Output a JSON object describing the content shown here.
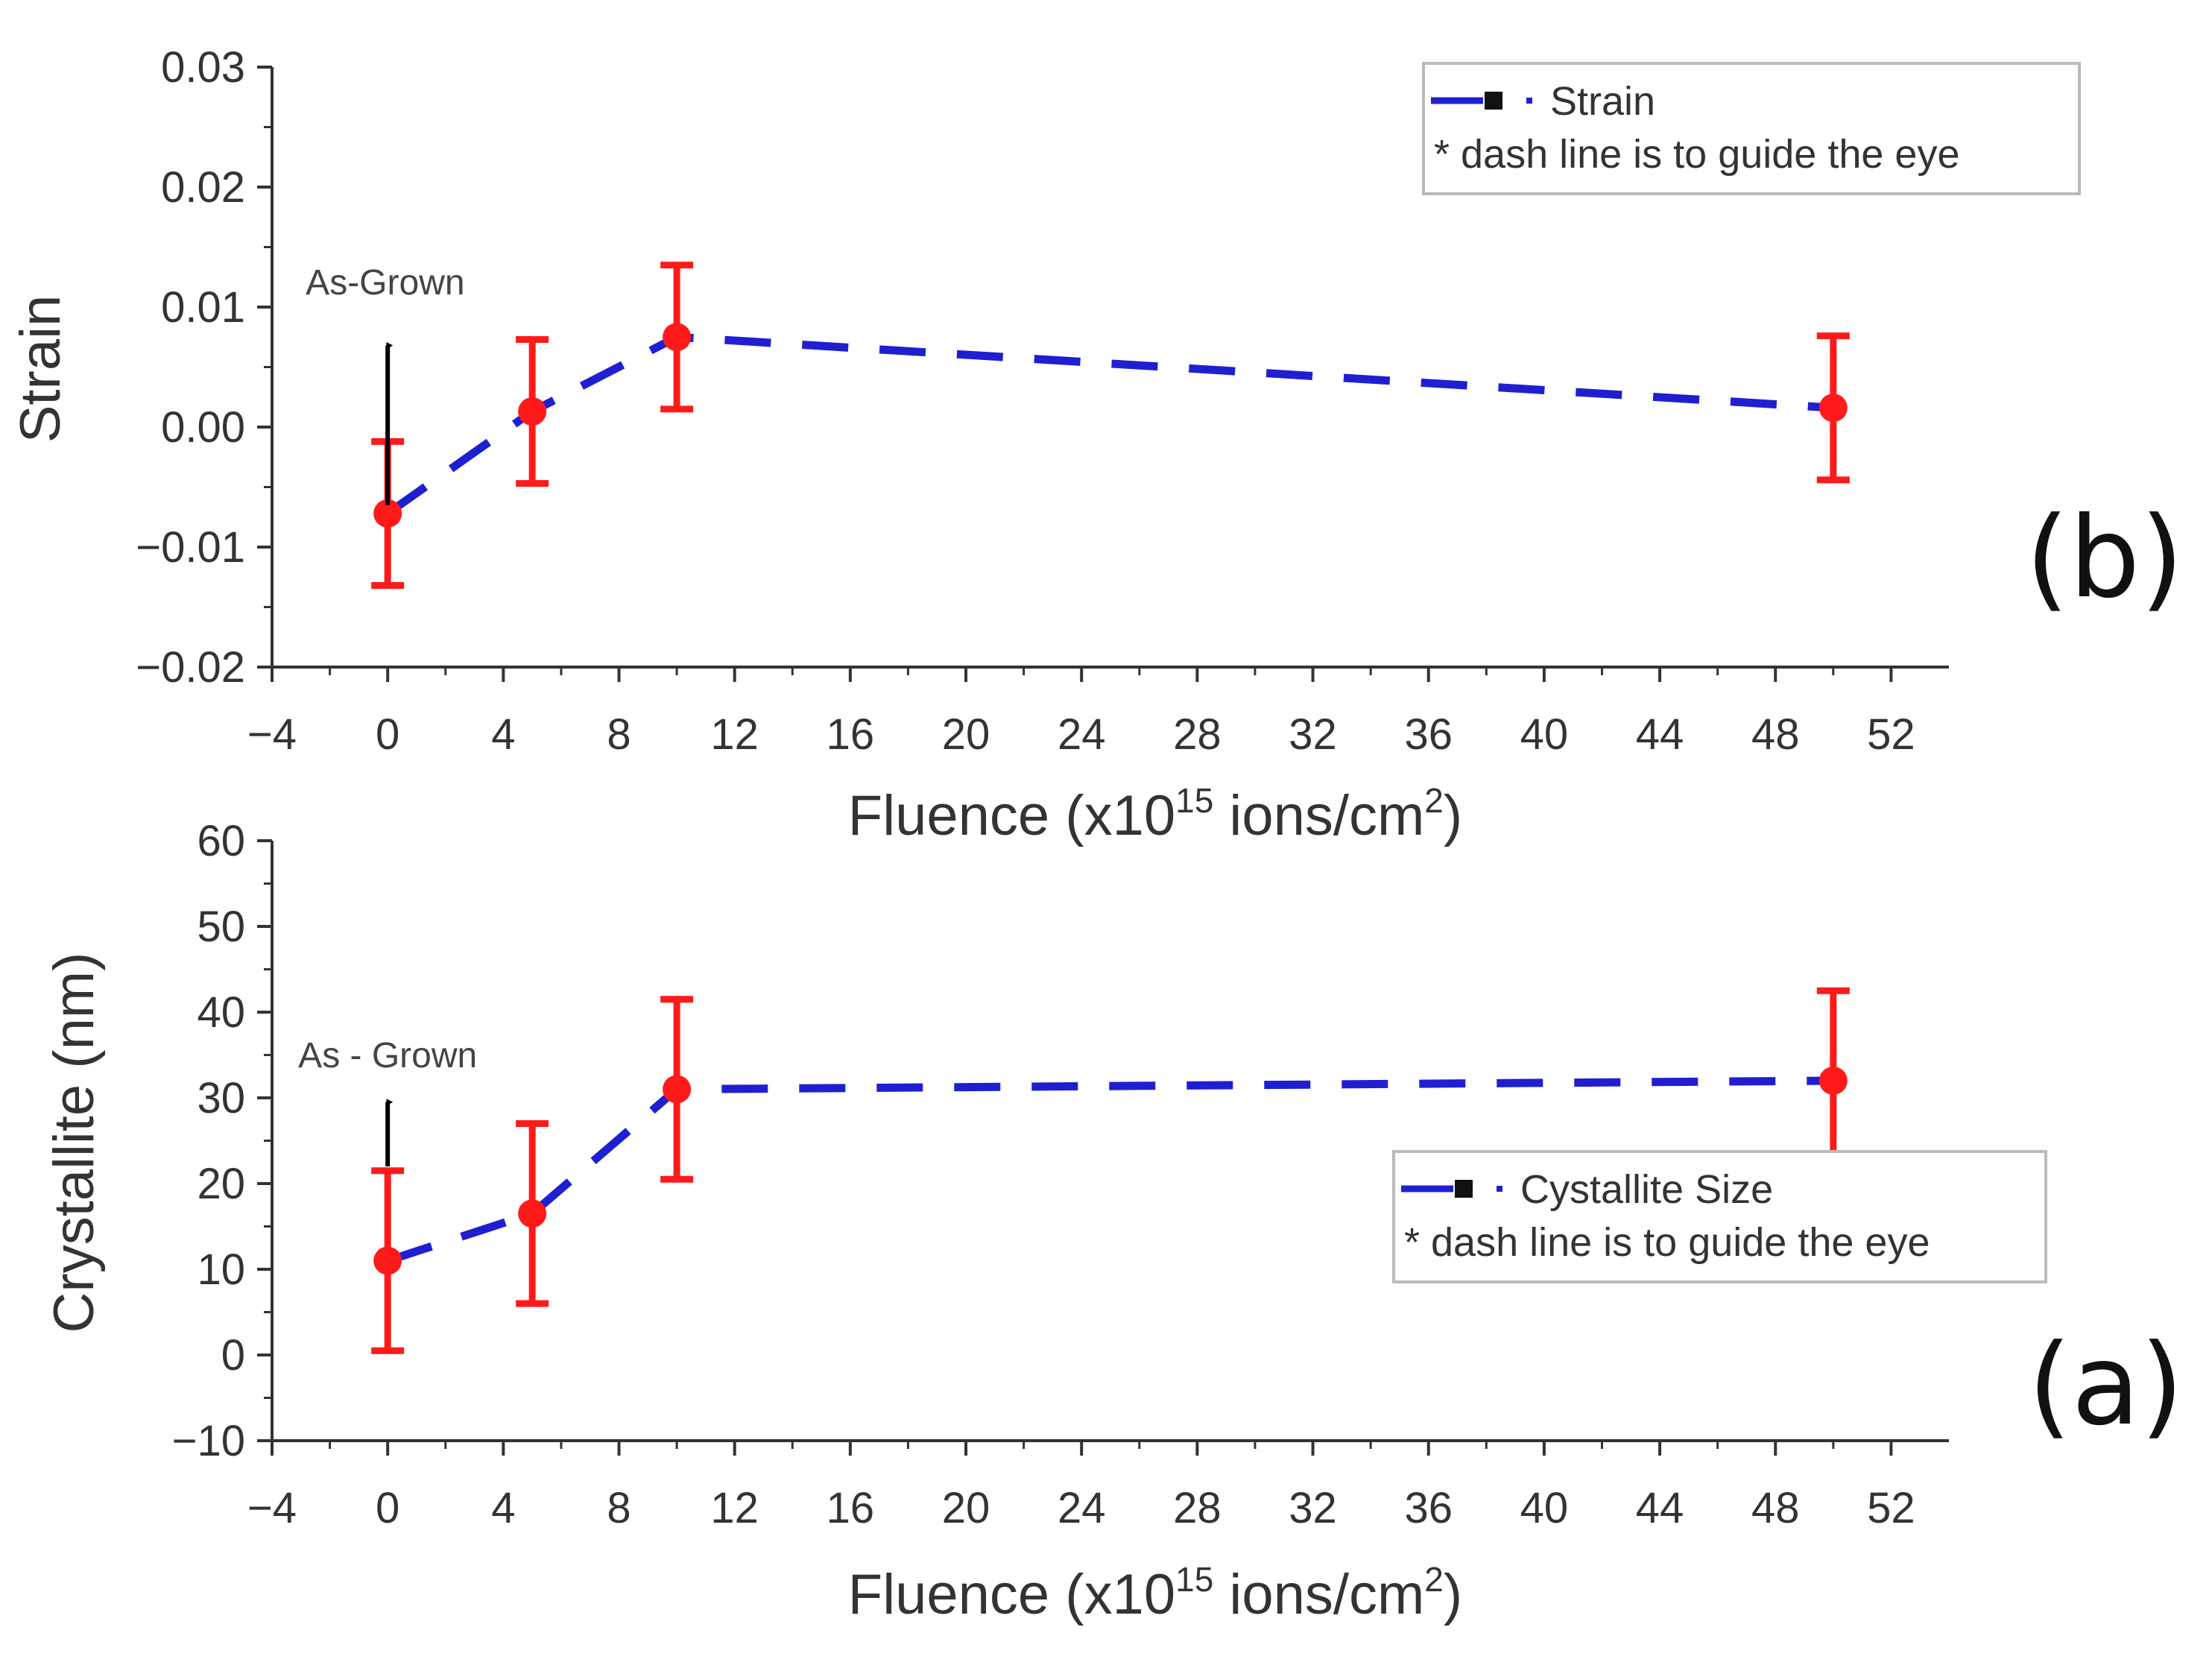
{
  "chart_data": [
    {
      "id": "b",
      "type": "line",
      "panel_label": "(b)",
      "title": "",
      "xlabel": "Fluence (x10",
      "xlabel_sup": "15",
      "xlabel_mid": " ions/cm",
      "xlabel_sup2": "2",
      "xlabel_end": ")",
      "ylabel": "Strain",
      "xlim": [
        -4,
        54
      ],
      "ylim": [
        -0.02,
        0.03
      ],
      "xticks": [
        -4,
        0,
        4,
        8,
        12,
        16,
        20,
        24,
        28,
        32,
        36,
        40,
        44,
        48,
        52
      ],
      "xtick_labels": [
        "−4",
        "0",
        "4",
        "8",
        "12",
        "16",
        "20",
        "24",
        "28",
        "32",
        "36",
        "40",
        "44",
        "48",
        "52"
      ],
      "yticks": [
        -0.02,
        -0.01,
        0.0,
        0.01,
        0.02,
        0.03
      ],
      "ytick_labels": [
        "−0.02",
        "−0.01",
        "0.00",
        "0.01",
        "0.02",
        "0.03"
      ],
      "series": [
        {
          "name": "Strain",
          "x": [
            0,
            5,
            10,
            50
          ],
          "y": [
            -0.0072,
            0.0013,
            0.0075,
            0.0016
          ],
          "yerr": [
            0.006,
            0.006,
            0.006,
            0.006
          ],
          "line_color": "#1f1fd1",
          "marker_color": "#ff1a1a"
        }
      ],
      "annotation": {
        "text": "As-Grown",
        "x": 0,
        "y_from": -0.0065,
        "y_to": 0.0068
      },
      "legend": {
        "entry": "Strain",
        "note": "* dash line is to guide the eye",
        "position": "top-right"
      }
    },
    {
      "id": "a",
      "type": "line",
      "panel_label": "(a)",
      "title": "",
      "xlabel": "Fluence (x10",
      "xlabel_sup": "15",
      "xlabel_mid": " ions/cm",
      "xlabel_sup2": "2",
      "xlabel_end": ")",
      "ylabel": "Crystallite (nm)",
      "xlim": [
        -4,
        54
      ],
      "ylim": [
        -10,
        60
      ],
      "xticks": [
        -4,
        0,
        4,
        8,
        12,
        16,
        20,
        24,
        28,
        32,
        36,
        40,
        44,
        48,
        52
      ],
      "xtick_labels": [
        "−4",
        "0",
        "4",
        "8",
        "12",
        "16",
        "20",
        "24",
        "28",
        "32",
        "36",
        "40",
        "44",
        "48",
        "52"
      ],
      "yticks": [
        -10,
        0,
        10,
        20,
        30,
        40,
        50,
        60
      ],
      "ytick_labels": [
        "−10",
        "0",
        "10",
        "20",
        "30",
        "40",
        "50",
        "60"
      ],
      "series": [
        {
          "name": "Cystallite Size",
          "x": [
            0,
            5,
            10,
            50
          ],
          "y": [
            11,
            16.5,
            31,
            32
          ],
          "yerr": [
            10.5,
            10.5,
            10.5,
            10.5
          ],
          "line_color": "#1f1fd1",
          "marker_color": "#ff1a1a"
        }
      ],
      "annotation": {
        "text": "As - Grown",
        "x": 0,
        "y_from": 22,
        "y_to": 29.5
      },
      "legend": {
        "entry": "Cystallite Size",
        "note": "* dash line is to guide the eye",
        "position": "center-right"
      }
    }
  ]
}
